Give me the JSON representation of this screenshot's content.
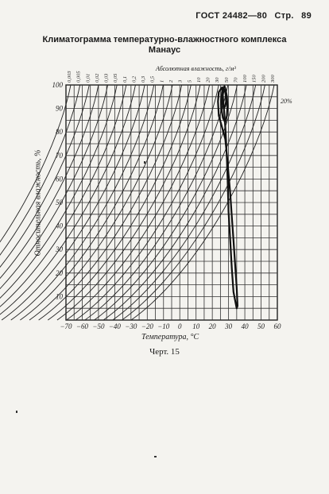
{
  "header": {
    "standard": "ГОСТ 24482—80",
    "page_label": "Стр.",
    "page_number": "89"
  },
  "title": {
    "line1": "Климатограмма температурно-влажностного комплекса",
    "line2": "Манаус"
  },
  "chart_data": {
    "type": "line",
    "title": "Климатограмма температурно-влажностного комплекса Манаус",
    "xlabel": "Температура, °C",
    "ylabel": "Относительная влажность, %",
    "x_ticks": [
      "−70",
      "−60",
      "−50",
      "−40",
      "−30",
      "−20",
      "−10",
      "0",
      "10",
      "20",
      "30",
      "40",
      "50",
      "60"
    ],
    "x_tick_values": [
      -70,
      -60,
      -50,
      -40,
      -30,
      -20,
      -10,
      0,
      10,
      20,
      30,
      40,
      50,
      60
    ],
    "y_ticks": [
      "10",
      "20",
      "30",
      "40",
      "50",
      "60",
      "70",
      "80",
      "90",
      "100"
    ],
    "y_tick_values": [
      10,
      20,
      30,
      40,
      50,
      60,
      70,
      80,
      90,
      100
    ],
    "xlim": [
      -70,
      60
    ],
    "ylim": [
      0,
      100
    ],
    "grid": true,
    "top_axis_label": "Абсолютная влажность, г/м³",
    "top_axis_ticks": [
      "0,003",
      "0,005",
      "0,01",
      "0,02",
      "0,03",
      "0,05",
      "0,1",
      "0,2",
      "0,3",
      "0,5",
      "1",
      "2",
      "3",
      "5",
      "10",
      "20",
      "30",
      "50",
      "70",
      "100",
      "150",
      "200",
      "300"
    ],
    "right_annotation": "20%",
    "series": [
      {
        "name": "",
        "x": [
          26,
          24,
          23.5,
          24,
          26,
          28,
          29,
          30,
          31,
          32,
          33,
          34,
          35,
          35.5,
          35,
          33,
          32,
          31,
          30,
          29.5,
          29,
          28.5,
          28,
          27.5,
          27,
          26.5,
          26
        ],
        "y": [
          99,
          97,
          93,
          87,
          82,
          77,
          70,
          62,
          54,
          44,
          34,
          24,
          14,
          6,
          5,
          12,
          22,
          34,
          46,
          58,
          68,
          76,
          82,
          87,
          91,
          95,
          99
        ]
      },
      {
        "name": "",
        "x": [
          27,
          26,
          25.5,
          25.8,
          26.5,
          28,
          29,
          29.3,
          29,
          28.5,
          28,
          27.5,
          27
        ],
        "y": [
          99,
          97,
          93,
          89,
          86,
          84,
          87,
          91,
          95,
          97,
          98.5,
          99.5,
          99
        ]
      },
      {
        "name": "",
        "x": [
          27,
          26.5,
          26.3,
          27,
          28,
          28.5,
          28.2,
          27.6,
          27
        ],
        "y": [
          98,
          96,
          93,
          90,
          91,
          93,
          96,
          98,
          98
        ]
      }
    ]
  },
  "caption": "Черт. 15"
}
